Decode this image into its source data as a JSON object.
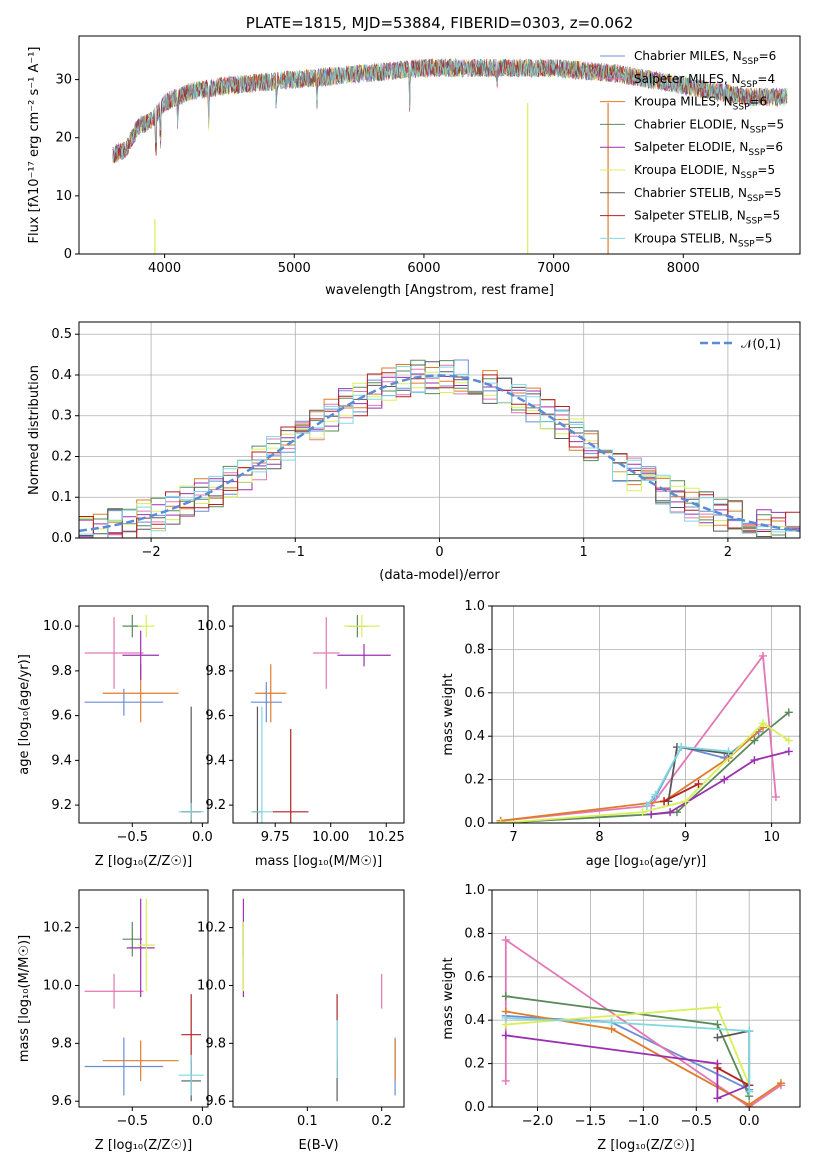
{
  "title": "PLATE=1815, MJD=53884, FIBERID=0303, z=0.062",
  "colors": [
    "#6a8dd6",
    "#e377b5",
    "#e07b2a",
    "#5a8a5a",
    "#9b30b0",
    "#d8f05a",
    "#595959",
    "#b22222",
    "#80d8e0"
  ],
  "models": [
    "Chabrier MILES",
    "Salpeter MILES",
    "Kroupa MILES",
    "Chabrier ELODIE",
    "Salpeter ELODIE",
    "Kroupa ELODIE",
    "Chabrier STELIB",
    "Salpeter STELIB",
    "Kroupa STELIB"
  ],
  "chart_data": [
    {
      "id": "spectrum",
      "type": "line",
      "title": "PLATE=1815, MJD=53884, FIBERID=0303, z=0.062",
      "xlabel": "wavelength [Angstrom, rest frame]",
      "ylabel": "Flux [f_λ 10^-17 erg cm^-2 s^-1 A^-1]",
      "xlim": [
        3340,
        8900
      ],
      "ylim": [
        0,
        37.5
      ],
      "xticks": [
        "4000",
        "5000",
        "6000",
        "7000",
        "8000"
      ],
      "yticks": [
        "0",
        "10",
        "20",
        "30"
      ],
      "grid": false,
      "legend_position": "top-right",
      "legend": [
        {
          "name": "Chabrier MILES",
          "nssp": "6"
        },
        {
          "name": "Salpeter MILES",
          "nssp": "4"
        },
        {
          "name": "Kroupa MILES",
          "nssp": "6"
        },
        {
          "name": "Chabrier ELODIE",
          "nssp": "5"
        },
        {
          "name": "Salpeter ELODIE",
          "nssp": "6"
        },
        {
          "name": "Kroupa ELODIE",
          "nssp": "5"
        },
        {
          "name": "Chabrier STELIB",
          "nssp": "5"
        },
        {
          "name": "Salpeter STELIB",
          "nssp": "5"
        },
        {
          "name": "Kroupa STELIB",
          "nssp": "5"
        }
      ],
      "continuum": [
        [
          3600,
          17
        ],
        [
          3700,
          18
        ],
        [
          3800,
          22
        ],
        [
          3900,
          23
        ],
        [
          4000,
          26
        ],
        [
          4200,
          28
        ],
        [
          4500,
          29
        ],
        [
          5000,
          30
        ],
        [
          5500,
          31
        ],
        [
          6000,
          32
        ],
        [
          6500,
          32
        ],
        [
          7000,
          32
        ],
        [
          7500,
          31
        ],
        [
          8000,
          29
        ],
        [
          8500,
          27
        ],
        [
          8800,
          27
        ]
      ],
      "absorption": [
        [
          3933,
          9
        ],
        [
          3968,
          8
        ],
        [
          4101,
          5
        ],
        [
          4340,
          6
        ],
        [
          4861,
          4
        ],
        [
          5175,
          4
        ],
        [
          5890,
          6
        ],
        [
          6563,
          3
        ]
      ]
    },
    {
      "id": "residuals",
      "type": "step",
      "xlabel": "(data-model)/error",
      "ylabel": "Normed distribution",
      "xlim": [
        -2.5,
        2.5
      ],
      "ylim": [
        0,
        0.53
      ],
      "xticks": [
        "−2",
        "−1",
        "0",
        "1",
        "2"
      ],
      "yticks": [
        "0.0",
        "0.1",
        "0.2",
        "0.3",
        "0.4",
        "0.5"
      ],
      "grid": true,
      "legend_position": "top-right",
      "legend": [
        {
          "name": "𝒩(0,1)"
        }
      ],
      "bin_width": 0.1
    },
    {
      "id": "z-age",
      "type": "scatter",
      "xlabel": "Z [log₁₀(Z/Z☉)]",
      "ylabel": "age  [log₁₀(age/yr)]",
      "xlim": [
        -0.88,
        0.04
      ],
      "ylim": [
        9.12,
        10.09
      ],
      "xticks": [
        "−0.5",
        "0.0"
      ],
      "yticks": [
        "9.2",
        "9.4",
        "9.6",
        "9.8",
        "10.0"
      ],
      "points": [
        {
          "x": -0.56,
          "y": 9.66,
          "xerr": 0.28,
          "yerr": 0.06
        },
        {
          "x": -0.63,
          "y": 9.88,
          "xerr": 0.21,
          "yerr": 0.16
        },
        {
          "x": -0.44,
          "y": 9.7,
          "xerr": 0.27,
          "yerr": 0.13
        },
        {
          "x": -0.5,
          "y": 10.0,
          "xerr": 0.07,
          "yerr": 0.05
        },
        {
          "x": -0.44,
          "y": 9.87,
          "xerr": 0.13,
          "yerr": 0.11
        },
        {
          "x": -0.4,
          "y": 10.0,
          "xerr": 0.06,
          "yerr": 0.05
        },
        {
          "x": -0.08,
          "y": 9.17,
          "xerr": 0.07,
          "yerr": 0.47
        },
        {
          "x": -0.08,
          "y": 9.17,
          "xerr": 0.07,
          "yerr": 0.04
        },
        {
          "x": -0.08,
          "y": 9.17,
          "xerr": 0.09,
          "yerr": 0.04
        }
      ]
    },
    {
      "id": "mass-age",
      "type": "scatter",
      "xlabel": "mass [log₁₀(M/M☉)]",
      "ylabel": "",
      "xlim": [
        9.56,
        10.33
      ],
      "ylim": [
        9.12,
        10.09
      ],
      "xticks": [
        "9.75",
        "10.00",
        "10.25"
      ],
      "yticks": [
        "9.2",
        "9.4",
        "9.6",
        "9.8",
        "10.0"
      ],
      "points": [
        {
          "x": 9.71,
          "y": 9.66,
          "xerr": 0.07,
          "yerr": 0.09
        },
        {
          "x": 9.98,
          "y": 9.88,
          "xerr": 0.06,
          "yerr": 0.16
        },
        {
          "x": 9.73,
          "y": 9.7,
          "xerr": 0.07,
          "yerr": 0.13
        },
        {
          "x": 10.12,
          "y": 10.0,
          "xerr": 0.04,
          "yerr": 0.05
        },
        {
          "x": 10.15,
          "y": 9.87,
          "xerr": 0.12,
          "yerr": 0.05
        },
        {
          "x": 10.14,
          "y": 10.0,
          "xerr": 0.08,
          "yerr": 0.05
        },
        {
          "x": 9.67,
          "y": 9.17,
          "xerr": 0.02,
          "yerr": 0.47
        },
        {
          "x": 9.82,
          "y": 9.17,
          "xerr": 0.08,
          "yerr": 0.37
        },
        {
          "x": 9.69,
          "y": 9.17,
          "xerr": 0.05,
          "yerr": 0.47
        }
      ]
    },
    {
      "id": "age-weight",
      "type": "line",
      "xlabel": "age  [log₁₀(age/yr)]",
      "ylabel": "mass weight",
      "xlim": [
        6.75,
        10.33
      ],
      "ylim": [
        0,
        1
      ],
      "xticks": [
        "7",
        "8",
        "9",
        "10"
      ],
      "yticks": [
        "0.0",
        "0.2",
        "0.4",
        "0.6",
        "0.8",
        "1.0"
      ],
      "grid": true,
      "series": [
        {
          "model": "Chabrier MILES",
          "x": [
            8.55,
            8.65,
            8.95,
            9.45,
            9.85
          ],
          "y": [
            0.08,
            0.12,
            0.35,
            0.3,
            0.42
          ]
        },
        {
          "model": "Salpeter MILES",
          "x": [
            6.85,
            8.6,
            9.9,
            10.05
          ],
          "y": [
            0.01,
            0.08,
            0.77,
            0.12
          ]
        },
        {
          "model": "Kroupa MILES",
          "x": [
            6.85,
            8.75,
            9.5,
            9.9
          ],
          "y": [
            0.01,
            0.1,
            0.3,
            0.44
          ]
        },
        {
          "model": "Chabrier ELODIE",
          "x": [
            6.85,
            8.6,
            8.9,
            9.8,
            10.2
          ],
          "y": [
            0.0,
            0.04,
            0.05,
            0.38,
            0.51
          ]
        },
        {
          "model": "Salpeter ELODIE",
          "x": [
            8.6,
            8.82,
            9.45,
            9.8,
            10.2
          ],
          "y": [
            0.04,
            0.05,
            0.2,
            0.29,
            0.33
          ]
        },
        {
          "model": "Kroupa ELODIE",
          "x": [
            6.85,
            8.5,
            9.0,
            9.9,
            10.2
          ],
          "y": [
            0.0,
            0.05,
            0.1,
            0.46,
            0.38
          ]
        },
        {
          "model": "Chabrier STELIB",
          "x": [
            8.8,
            8.9,
            9.5
          ],
          "y": [
            0.1,
            0.35,
            0.32
          ]
        },
        {
          "model": "Salpeter STELIB",
          "x": [
            8.75,
            9.15
          ],
          "y": [
            0.1,
            0.18
          ]
        },
        {
          "model": "Kroupa STELIB",
          "x": [
            8.55,
            8.65,
            8.95,
            9.5
          ],
          "y": [
            0.08,
            0.13,
            0.35,
            0.33
          ]
        }
      ]
    },
    {
      "id": "z-mass",
      "type": "scatter",
      "xlabel": "Z [log₁₀(Z/Z☉)]",
      "ylabel": "mass [log₁₀(M/M☉)]",
      "xlim": [
        -0.88,
        0.04
      ],
      "ylim": [
        9.58,
        10.33
      ],
      "xticks": [
        "−0.5",
        "0.0"
      ],
      "yticks": [
        "9.6",
        "9.8",
        "10.0",
        "10.2"
      ],
      "points": [
        {
          "x": -0.56,
          "y": 9.72,
          "xerr": 0.28,
          "yerr": 0.1
        },
        {
          "x": -0.63,
          "y": 9.98,
          "xerr": 0.21,
          "yerr": 0.06
        },
        {
          "x": -0.44,
          "y": 9.74,
          "xerr": 0.27,
          "yerr": 0.07
        },
        {
          "x": -0.5,
          "y": 10.16,
          "xerr": 0.07,
          "yerr": 0.06
        },
        {
          "x": -0.44,
          "y": 10.13,
          "xerr": 0.1,
          "yerr": 0.17
        },
        {
          "x": -0.4,
          "y": 10.14,
          "xerr": 0.06,
          "yerr": 0.16
        },
        {
          "x": -0.08,
          "y": 9.67,
          "xerr": 0.07,
          "yerr": 0.07
        },
        {
          "x": -0.08,
          "y": 9.83,
          "xerr": 0.07,
          "yerr": 0.14
        },
        {
          "x": -0.08,
          "y": 9.69,
          "xerr": 0.09,
          "yerr": 0.07
        }
      ]
    },
    {
      "id": "ebv-mass",
      "type": "scatter",
      "xlabel": "E(B-V)",
      "ylabel": "",
      "xlim": [
        0.0,
        0.23
      ],
      "ylim": [
        9.58,
        10.33
      ],
      "xticks": [
        "0.1",
        "0.2"
      ],
      "yticks": [
        "9.6",
        "9.8",
        "10.0",
        "10.2"
      ],
      "points": [
        {
          "x": 0.218,
          "y": 9.72,
          "yerr": 0.1
        },
        {
          "x": 0.2,
          "y": 9.98,
          "yerr": 0.06
        },
        {
          "x": 0.218,
          "y": 9.74,
          "yerr": 0.07
        },
        {
          "x": 0.014,
          "y": 10.16,
          "yerr": 0.06
        },
        {
          "x": 0.014,
          "y": 10.13,
          "yerr": 0.17
        },
        {
          "x": 0.014,
          "y": 10.1,
          "yerr": 0.12
        },
        {
          "x": 0.14,
          "y": 9.67,
          "yerr": 0.07
        },
        {
          "x": 0.14,
          "y": 9.83,
          "yerr": 0.14
        },
        {
          "x": 0.14,
          "y": 9.78,
          "yerr": 0.1
        }
      ]
    },
    {
      "id": "z-weight",
      "type": "line",
      "xlabel": "Z [log₁₀(Z/Z☉)]",
      "ylabel": "mass weight",
      "xlim": [
        -2.43,
        0.48
      ],
      "ylim": [
        0,
        1
      ],
      "xticks": [
        "−2.0",
        "−1.5",
        "−1.0",
        "−0.5",
        "0.0"
      ],
      "yticks": [
        "0.0",
        "0.2",
        "0.4",
        "0.6",
        "0.8",
        "1.0"
      ],
      "grid": true,
      "series": [
        {
          "model": "Chabrier MILES",
          "x": [
            -2.3,
            -1.3,
            0.0
          ],
          "y": [
            0.42,
            0.39,
            0.08
          ]
        },
        {
          "model": "Salpeter MILES",
          "x": [
            -2.3,
            -2.3,
            0.0,
            0.3
          ],
          "y": [
            0.12,
            0.77,
            0.0,
            0.1
          ]
        },
        {
          "model": "Kroupa MILES",
          "x": [
            -2.3,
            -1.3,
            0.0,
            0.3
          ],
          "y": [
            0.44,
            0.36,
            0.01,
            0.11
          ]
        },
        {
          "model": "Chabrier ELODIE",
          "x": [
            -2.3,
            -0.3,
            0.0
          ],
          "y": [
            0.51,
            0.38,
            0.05
          ]
        },
        {
          "model": "Salpeter ELODIE",
          "x": [
            -2.3,
            -0.3,
            -0.3,
            0.0
          ],
          "y": [
            0.33,
            0.2,
            0.04,
            0.1
          ]
        },
        {
          "model": "Kroupa ELODIE",
          "x": [
            -2.3,
            -0.3,
            0.0
          ],
          "y": [
            0.38,
            0.46,
            0.1
          ]
        },
        {
          "model": "Chabrier STELIB",
          "x": [
            -0.3,
            0.0,
            0.0
          ],
          "y": [
            0.32,
            0.35,
            0.1
          ]
        },
        {
          "model": "Salpeter STELIB",
          "x": [
            -0.3,
            0.0
          ],
          "y": [
            0.18,
            0.1
          ]
        },
        {
          "model": "Kroupa STELIB",
          "x": [
            -2.3,
            -1.3,
            0.0,
            0.0
          ],
          "y": [
            0.41,
            0.39,
            0.35,
            0.07
          ]
        }
      ]
    }
  ]
}
